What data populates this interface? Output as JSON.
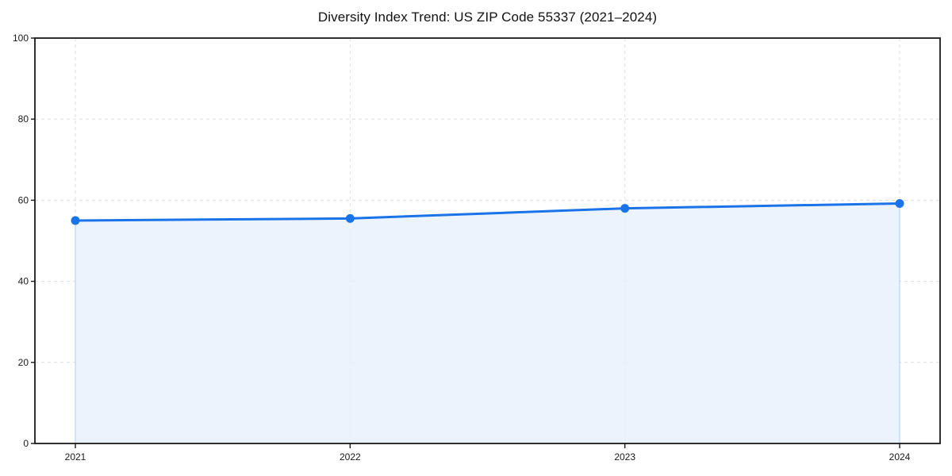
{
  "chart_data": {
    "type": "area",
    "title": "Diversity Index Trend: US ZIP Code 55337 (2021–2024)",
    "x": [
      2021,
      2022,
      2023,
      2024
    ],
    "values": [
      55.0,
      55.5,
      58.0,
      59.2
    ],
    "xticks": [
      "2021",
      "2022",
      "2023",
      "2024"
    ],
    "yticks": [
      0,
      20,
      40,
      60,
      80,
      100
    ],
    "ylim": [
      0,
      100
    ],
    "xlabel": "",
    "ylabel": "",
    "grid": true,
    "grid_style": "dashed",
    "legend_position": "none",
    "colors": {
      "line": "#1a73e8",
      "marker": "#1a73e8",
      "fill": "#e8f1fd",
      "fill_edge": "#bcd4f4",
      "grid": "#dedede",
      "spine": "#1a1a1a",
      "tick_label": "#1a1a1a",
      "title": "#111111",
      "background": "#ffffff"
    }
  }
}
